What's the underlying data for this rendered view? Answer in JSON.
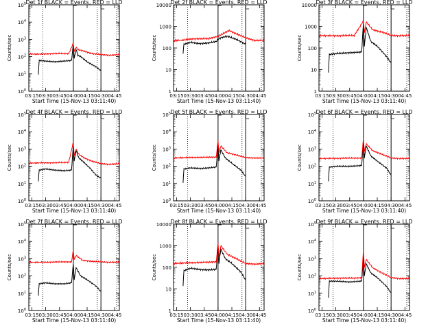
{
  "figure": {
    "x_tick_labels": [
      "03:15",
      "03:30",
      "03:45",
      "04:00",
      "04:15",
      "04:30",
      "04:45"
    ],
    "xlabel": "Start Time (15-Nov-13 03:11:40)",
    "ylabel": "Counts/sec",
    "colors": {
      "events": "#000000",
      "lld": "#ff0000",
      "axes": "#000000"
    }
  },
  "chart_data": [
    {
      "type": "line",
      "title": "Det 1f BLACK = Events, RED = LLD",
      "xlabel": "Start Time (15-Nov-13 03:11:40)",
      "ylabel": "Counts/sec",
      "y_scale": "log",
      "ylim": [
        1,
        100000
      ],
      "y_tick_labels": [
        "10^0",
        "10^1",
        "10^2",
        "10^3",
        "10^4",
        "10^5"
      ],
      "x_time_range": [
        "03:11:40",
        "04:50:00"
      ],
      "vlines_solid": [
        "04:00",
        "04:30"
      ],
      "vlines_dotted": [
        "03:27",
        "04:26",
        "04:47"
      ],
      "series": [
        {
          "name": "BLACK = Events",
          "x": [
            "03:22",
            "03:23",
            "03:30",
            "03:40",
            "03:50",
            "03:58",
            "04:00",
            "04:01",
            "04:03",
            "04:05",
            "04:08",
            "04:15",
            "04:25",
            "04:30"
          ],
          "values": [
            10,
            60,
            55,
            50,
            55,
            60,
            500,
            80,
            250,
            120,
            100,
            50,
            25,
            15
          ]
        },
        {
          "name": "RED = LLD",
          "x": [
            "03:11:40",
            "03:25",
            "03:40",
            "03:55",
            "04:00",
            "04:01",
            "04:03",
            "04:05",
            "04:10",
            "04:20",
            "04:30",
            "04:40",
            "04:50"
          ],
          "values": [
            140,
            140,
            150,
            150,
            600,
            200,
            350,
            250,
            220,
            150,
            130,
            120,
            130
          ]
        }
      ]
    },
    {
      "type": "line",
      "title": "Det 2f BLACK = Events, RED = LLD",
      "xlabel": "Start Time (15-Nov-13 03:11:40)",
      "ylabel": "Counts/sec",
      "y_scale": "log",
      "ylim": [
        1,
        10000
      ],
      "y_tick_labels": [
        "1",
        "10",
        "100",
        "1000",
        "10000"
      ],
      "x_time_range": [
        "03:11:40",
        "04:50:00"
      ],
      "vlines_solid": [
        "04:00",
        "04:30"
      ],
      "vlines_dotted": [
        "03:27",
        "04:26",
        "04:47"
      ],
      "series": [
        {
          "name": "BLACK = Events",
          "x": [
            "03:22",
            "03:23",
            "03:30",
            "03:40",
            "03:50",
            "03:58",
            "04:00",
            "04:03",
            "04:10",
            "04:20",
            "04:30"
          ],
          "values": [
            60,
            150,
            180,
            160,
            170,
            200,
            250,
            300,
            350,
            250,
            150
          ]
        },
        {
          "name": "RED = LLD",
          "x": [
            "03:11:40",
            "03:22",
            "03:30",
            "03:40",
            "03:50",
            "04:00",
            "04:05",
            "04:12",
            "04:20",
            "04:30",
            "04:40",
            "04:50"
          ],
          "values": [
            220,
            230,
            260,
            270,
            270,
            350,
            450,
            650,
            450,
            300,
            220,
            230
          ]
        }
      ]
    },
    {
      "type": "line",
      "title": "Det 3f BLACK = Events, RED = LLD",
      "xlabel": "Start Time (15-Nov-13 03:11:40)",
      "ylabel": "Counts/sec",
      "y_scale": "log",
      "ylim": [
        1,
        10000
      ],
      "y_tick_labels": [
        "1",
        "10",
        "100",
        "1000",
        "10000"
      ],
      "x_time_range": [
        "03:11:40",
        "04:50:00"
      ],
      "vlines_solid": [
        "04:00",
        "04:30"
      ],
      "vlines_dotted": [
        "03:27",
        "04:26",
        "04:47"
      ],
      "series": [
        {
          "name": "BLACK = Events",
          "x": [
            "03:22",
            "03:23",
            "03:30",
            "03:45",
            "03:58",
            "04:00",
            "04:01",
            "04:03",
            "04:08",
            "04:15",
            "04:25",
            "04:30"
          ],
          "values": [
            8,
            50,
            55,
            60,
            65,
            1500,
            120,
            900,
            200,
            120,
            40,
            20
          ]
        },
        {
          "name": "RED = LLD",
          "x": [
            "03:11:40",
            "03:30",
            "03:50",
            "04:00",
            "04:01",
            "04:03",
            "04:10",
            "04:20",
            "04:30",
            "04:40",
            "04:50"
          ],
          "values": [
            370,
            370,
            380,
            1800,
            500,
            1600,
            700,
            550,
            380,
            370,
            370
          ]
        }
      ]
    },
    {
      "type": "line",
      "title": "Det 4f BLACK = Events, RED = LLD",
      "xlabel": "Start Time (15-Nov-13 03:11:40)",
      "ylabel": "Counts/sec",
      "y_scale": "log",
      "ylim": [
        1,
        100000
      ],
      "y_tick_labels": [
        "10^0",
        "10^1",
        "10^2",
        "10^3",
        "10^4",
        "10^5"
      ],
      "x_time_range": [
        "03:11:40",
        "04:50:00"
      ],
      "vlines_solid": [
        "04:00",
        "04:30"
      ],
      "vlines_dotted": [
        "03:27",
        "04:26",
        "04:47"
      ],
      "series": [
        {
          "name": "BLACK = Events",
          "x": [
            "03:22",
            "03:23",
            "03:30",
            "03:40",
            "03:50",
            "03:58",
            "04:00",
            "04:01",
            "04:03",
            "04:06",
            "04:10",
            "04:18",
            "04:25",
            "04:30"
          ],
          "values": [
            15,
            60,
            70,
            60,
            55,
            60,
            1500,
            200,
            800,
            300,
            200,
            80,
            30,
            20
          ]
        },
        {
          "name": "RED = LLD",
          "x": [
            "03:11:40",
            "03:25",
            "03:40",
            "03:55",
            "04:00",
            "04:01",
            "04:03",
            "04:06",
            "04:12",
            "04:20",
            "04:30",
            "04:40",
            "04:50"
          ],
          "values": [
            150,
            160,
            160,
            170,
            2500,
            400,
            1000,
            500,
            300,
            200,
            140,
            130,
            140
          ]
        }
      ]
    },
    {
      "type": "line",
      "title": "Det 5f BLACK = Events, RED = LLD",
      "xlabel": "Start Time (15-Nov-13 03:11:40)",
      "ylabel": "Counts/sec",
      "y_scale": "log",
      "ylim": [
        1,
        100000
      ],
      "y_tick_labels": [
        "10^0",
        "10^1",
        "10^2",
        "10^3",
        "10^4",
        "10^5"
      ],
      "x_time_range": [
        "03:11:40",
        "04:50:00"
      ],
      "vlines_solid": [
        "04:00",
        "04:30"
      ],
      "vlines_dotted": [
        "03:27",
        "04:26",
        "04:47"
      ],
      "series": [
        {
          "name": "BLACK = Events",
          "x": [
            "03:22",
            "03:23",
            "03:30",
            "03:40",
            "03:50",
            "03:58",
            "04:00",
            "04:01",
            "04:03",
            "04:08",
            "04:15",
            "04:25",
            "04:30"
          ],
          "values": [
            12,
            70,
            80,
            75,
            80,
            90,
            2000,
            200,
            900,
            300,
            150,
            60,
            25
          ]
        },
        {
          "name": "RED = LLD",
          "x": [
            "03:11:40",
            "03:25",
            "03:45",
            "03:58",
            "04:00",
            "04:01",
            "04:03",
            "04:10",
            "04:20",
            "04:30",
            "04:40",
            "04:50"
          ],
          "values": [
            300,
            320,
            330,
            340,
            3000,
            600,
            1500,
            600,
            450,
            320,
            300,
            300
          ]
        }
      ]
    },
    {
      "type": "line",
      "title": "Det 6f BLACK = Events, RED = LLD",
      "xlabel": "Start Time (15-Nov-13 03:11:40)",
      "ylabel": "Counts/sec",
      "y_scale": "log",
      "ylim": [
        1,
        100000
      ],
      "y_tick_labels": [
        "10^0",
        "10^1",
        "10^2",
        "10^3",
        "10^4",
        "10^5"
      ],
      "x_time_range": [
        "03:11:40",
        "04:50:00"
      ],
      "vlines_solid": [
        "04:00",
        "04:30"
      ],
      "vlines_dotted": [
        "03:27",
        "04:26",
        "04:47"
      ],
      "series": [
        {
          "name": "BLACK = Events",
          "x": [
            "03:22",
            "03:23",
            "03:30",
            "03:45",
            "03:58",
            "04:00",
            "04:01",
            "04:03",
            "04:08",
            "04:15",
            "04:25",
            "04:30"
          ],
          "values": [
            15,
            90,
            100,
            100,
            110,
            3000,
            300,
            1500,
            400,
            200,
            80,
            30
          ]
        },
        {
          "name": "RED = LLD",
          "x": [
            "03:11:40",
            "03:30",
            "03:50",
            "03:58",
            "04:00",
            "04:01",
            "04:03",
            "04:10",
            "04:20",
            "04:30",
            "04:40",
            "04:50"
          ],
          "values": [
            280,
            290,
            300,
            300,
            4000,
            700,
            2000,
            800,
            500,
            300,
            280,
            280
          ]
        }
      ]
    },
    {
      "type": "line",
      "title": "Det 7f BLACK = Events, RED = LLD",
      "xlabel": "Start Time (15-Nov-13 03:11:40)",
      "ylabel": "Counts/sec",
      "y_scale": "log",
      "ylim": [
        1,
        100000
      ],
      "y_tick_labels": [
        "10^0",
        "10^1",
        "10^2",
        "10^3",
        "10^4",
        "10^5"
      ],
      "x_time_range": [
        "03:11:40",
        "04:50:00"
      ],
      "vlines_solid": [
        "04:00",
        "04:30"
      ],
      "vlines_dotted": [
        "03:27",
        "04:26",
        "04:47"
      ],
      "series": [
        {
          "name": "BLACK = Events",
          "x": [
            "03:22",
            "03:23",
            "03:30",
            "03:40",
            "03:50",
            "03:58",
            "04:00",
            "04:01",
            "04:03",
            "04:08",
            "04:15",
            "04:25",
            "04:30"
          ],
          "values": [
            8,
            35,
            40,
            35,
            35,
            40,
            500,
            60,
            300,
            100,
            60,
            25,
            12
          ]
        },
        {
          "name": "RED = LLD",
          "x": [
            "03:11:40",
            "03:25",
            "03:45",
            "03:58",
            "04:00",
            "04:01",
            "04:03",
            "04:10",
            "04:20",
            "04:30",
            "04:40",
            "04:50"
          ],
          "values": [
            600,
            620,
            650,
            650,
            3000,
            900,
            1500,
            800,
            700,
            650,
            620,
            620
          ]
        }
      ]
    },
    {
      "type": "line",
      "title": "Det 8f BLACK = Events, RED = LLD",
      "xlabel": "Start Time (15-Nov-13 03:11:40)",
      "ylabel": "Counts/sec",
      "y_scale": "log",
      "ylim": [
        1,
        10000
      ],
      "y_tick_labels": [
        "1",
        "10",
        "100",
        "1000",
        "10000"
      ],
      "x_time_range": [
        "03:11:40",
        "04:50:00"
      ],
      "vlines_solid": [
        "04:00",
        "04:30"
      ],
      "vlines_dotted": [
        "03:27",
        "04:26",
        "04:47"
      ],
      "series": [
        {
          "name": "BLACK = Events",
          "x": [
            "03:22",
            "03:23",
            "03:30",
            "03:40",
            "03:50",
            "03:58",
            "04:00",
            "04:01",
            "04:03",
            "04:08",
            "04:15",
            "04:25",
            "04:30"
          ],
          "values": [
            15,
            70,
            90,
            80,
            75,
            80,
            1200,
            150,
            700,
            250,
            150,
            60,
            25
          ]
        },
        {
          "name": "RED = LLD",
          "x": [
            "03:11:40",
            "03:25",
            "03:45",
            "03:58",
            "04:00",
            "04:01",
            "04:03",
            "04:10",
            "04:20",
            "04:30",
            "04:40",
            "04:50"
          ],
          "values": [
            150,
            160,
            170,
            180,
            1300,
            300,
            1000,
            400,
            250,
            150,
            140,
            150
          ]
        }
      ]
    },
    {
      "type": "line",
      "title": "Det 9f BLACK = Events, RED = LLD",
      "xlabel": "Start Time (15-Nov-13 03:11:40)",
      "ylabel": "Counts/sec",
      "y_scale": "log",
      "ylim": [
        1,
        100000
      ],
      "y_tick_labels": [
        "10^0",
        "10^1",
        "10^2",
        "10^3",
        "10^4",
        "10^5"
      ],
      "x_time_range": [
        "03:11:40",
        "04:50:00"
      ],
      "vlines_solid": [
        "04:00",
        "04:30"
      ],
      "vlines_dotted": [
        "03:27",
        "04:26",
        "04:47"
      ],
      "series": [
        {
          "name": "BLACK = Events",
          "x": [
            "03:22",
            "03:23",
            "03:30",
            "03:45",
            "03:58",
            "04:00",
            "04:01",
            "04:03",
            "04:08",
            "04:15",
            "04:25",
            "04:30"
          ],
          "values": [
            6,
            50,
            50,
            45,
            50,
            1000,
            100,
            500,
            150,
            80,
            25,
            10
          ]
        },
        {
          "name": "RED = LLD",
          "x": [
            "03:11:40",
            "03:30",
            "03:50",
            "03:58",
            "04:00",
            "04:01",
            "04:03",
            "04:10",
            "04:20",
            "04:30",
            "04:40",
            "04:50"
          ],
          "values": [
            70,
            75,
            75,
            80,
            3000,
            300,
            900,
            300,
            150,
            80,
            70,
            70
          ]
        }
      ]
    }
  ]
}
